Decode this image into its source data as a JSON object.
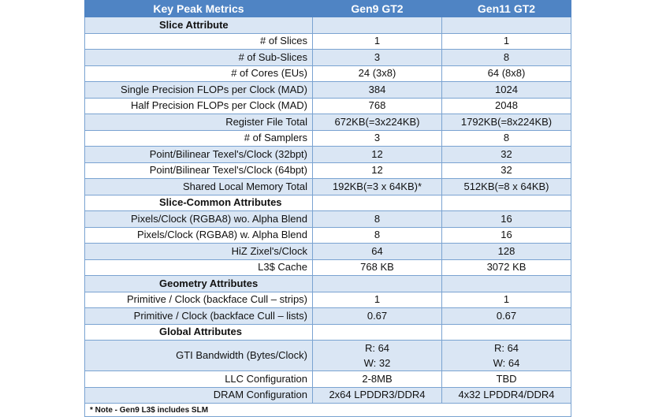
{
  "header": {
    "col1": "Key Peak Metrics",
    "col2": "Gen9 GT2",
    "col3": "Gen11 GT2"
  },
  "rows": [
    {
      "type": "section",
      "label": "Slice Attribute",
      "gen9": "",
      "gen11": ""
    },
    {
      "type": "data",
      "label": "# of Slices",
      "gen9": "1",
      "gen11": "1"
    },
    {
      "type": "data",
      "label": "# of Sub-Slices",
      "gen9": "3",
      "gen11": "8"
    },
    {
      "type": "data",
      "label": "# of Cores (EUs)",
      "gen9": "24 (3x8)",
      "gen11": "64 (8x8)"
    },
    {
      "type": "data",
      "label": "Single Precision FLOPs per Clock (MAD)",
      "gen9": "384",
      "gen11": "1024"
    },
    {
      "type": "data",
      "label": "Half Precision FLOPs per Clock (MAD)",
      "gen9": "768",
      "gen11": "2048"
    },
    {
      "type": "data",
      "label": "Register File Total",
      "gen9": "672KB(=3x224KB)",
      "gen11": "1792KB(=8x224KB)"
    },
    {
      "type": "data",
      "label": "# of Samplers",
      "gen9": "3",
      "gen11": "8"
    },
    {
      "type": "data",
      "label": "Point/Bilinear Texel's/Clock (32bpt)",
      "gen9": "12",
      "gen11": "32"
    },
    {
      "type": "data",
      "label": "Point/Bilinear Texel's/Clock (64bpt)",
      "gen9": "12",
      "gen11": "32"
    },
    {
      "type": "data",
      "label": "Shared Local Memory Total",
      "gen9": "192KB(=3 x 64KB)*",
      "gen11": "512KB(=8 x 64KB)"
    },
    {
      "type": "section",
      "label": "Slice-Common Attributes",
      "gen9": "",
      "gen11": ""
    },
    {
      "type": "data",
      "label": "Pixels/Clock (RGBA8) wo. Alpha Blend",
      "gen9": "8",
      "gen11": "16"
    },
    {
      "type": "data",
      "label": "Pixels/Clock (RGBA8) w. Alpha Blend",
      "gen9": "8",
      "gen11": "16"
    },
    {
      "type": "data",
      "label": "HiZ Zixel's/Clock",
      "gen9": "64",
      "gen11": "128"
    },
    {
      "type": "data",
      "label": "L3$ Cache",
      "gen9": "768 KB",
      "gen11": "3072 KB"
    },
    {
      "type": "section",
      "label": "Geometry Attributes",
      "gen9": "",
      "gen11": ""
    },
    {
      "type": "data",
      "label": "Primitive / Clock (backface Cull – strips)",
      "gen9": "1",
      "gen11": "1"
    },
    {
      "type": "data",
      "label": "Primitive / Clock (backface Cull – lists)",
      "gen9": "0.67",
      "gen11": "0.67"
    },
    {
      "type": "section",
      "label": "Global Attributes",
      "gen9": "",
      "gen11": ""
    },
    {
      "type": "tall",
      "label": "GTI Bandwidth (Bytes/Clock)",
      "gen9a": "R: 64",
      "gen9b": "W: 32",
      "gen11a": "R: 64",
      "gen11b": "W: 64"
    },
    {
      "type": "data",
      "label": "LLC Configuration",
      "gen9": "2-8MB",
      "gen11": "TBD"
    },
    {
      "type": "data",
      "label": "DRAM Configuration",
      "gen9": "2x64 LPDDR3/DDR4",
      "gen11": "4x32 LPDDR4/DDR4"
    }
  ],
  "note": "* Note - Gen9 L3$ includes SLM",
  "colors": {
    "header_bg": "#4f84c4",
    "band_bg": "#dae6f4",
    "border": "#7aa3d1"
  }
}
